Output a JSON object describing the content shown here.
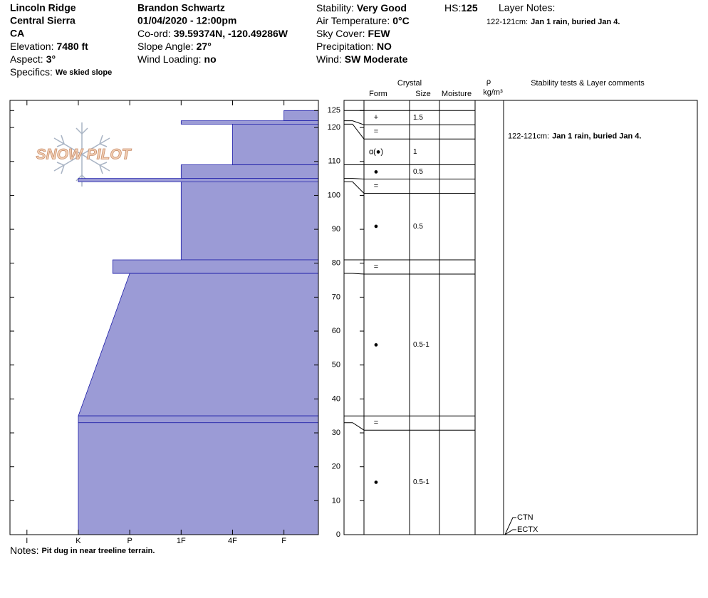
{
  "header": {
    "columns": [
      {
        "lines": [
          "Lincoln Ridge",
          "Central Sierra",
          "CA"
        ],
        "fields": [
          {
            "label": "Elevation:",
            "value": "7480 ft"
          },
          {
            "label": "Aspect:",
            "value": "3°"
          },
          {
            "label": "Specifics:",
            "value": "We skied slope"
          }
        ]
      },
      {
        "lines": [
          "Brandon Schwartz",
          "01/04/2020 - 12:00pm"
        ],
        "fields": [
          {
            "label": "Co-ord:",
            "value": "39.59374N, -120.49286W"
          },
          {
            "label": "Slope Angle:",
            "value": "27°"
          },
          {
            "label": "Wind Loading:",
            "value": "no"
          }
        ]
      },
      {
        "fields": [
          {
            "label": "Stability:",
            "value": "Very Good"
          },
          {
            "label": "Air Temperature:",
            "value": "0°C"
          },
          {
            "label": "Sky Cover:",
            "value": "FEW"
          },
          {
            "label": "Precipitation:",
            "value": "NO"
          },
          {
            "label": "Wind:",
            "value": "SW Moderate"
          }
        ]
      }
    ],
    "hs": {
      "label": "HS:",
      "value": 125
    },
    "layer_notes": {
      "title": "Layer Notes:",
      "notes": [
        {
          "depth": "122-121cm:",
          "text": "Jan 1 rain, buried Jan 4."
        }
      ]
    }
  },
  "logo": "SNOW PILOT",
  "chart_data": {
    "type": "snow_profile",
    "color": "#9b9bd6",
    "xlim": [
      5.33,
      -0.67
    ],
    "xticks": [
      {
        "value": 5,
        "label": "I"
      },
      {
        "value": 4,
        "label": "K"
      },
      {
        "value": 3,
        "label": "P"
      },
      {
        "value": 2,
        "label": "1F"
      },
      {
        "value": 1,
        "label": "4F"
      },
      {
        "value": 0,
        "label": "F"
      }
    ],
    "ylim": [
      0,
      128
    ],
    "yticks": [
      0,
      10,
      20,
      30,
      40,
      50,
      60,
      70,
      80,
      90,
      100,
      110,
      120,
      125
    ],
    "layers": [
      {
        "top": 125,
        "bottom": 122,
        "hardness_top": 0,
        "hardness_bottom": 0,
        "form": "+",
        "size": 1.5
      },
      {
        "top": 122,
        "bottom": 121,
        "hardness_top": 2,
        "hardness_bottom": 2,
        "form": "="
      },
      {
        "top": 121,
        "bottom": 109,
        "hardness_top": 1,
        "hardness_bottom": 1,
        "form": "ɑ(●)",
        "size": 1
      },
      {
        "top": 109,
        "bottom": 105,
        "hardness_top": 2,
        "hardness_bottom": 2,
        "form": "●",
        "size": 0.5
      },
      {
        "top": 105,
        "bottom": 104,
        "hardness_top": 4,
        "hardness_bottom": 4,
        "form": "="
      },
      {
        "top": 104,
        "bottom": 81,
        "hardness_top": 2,
        "hardness_bottom": 2,
        "form": "●",
        "size": 0.5
      },
      {
        "top": 81,
        "bottom": 77,
        "hardness_top": 3.33,
        "hardness_bottom": 3.33,
        "form": "="
      },
      {
        "top": 77,
        "bottom": 35,
        "hardness_top": 3,
        "hardness_bottom": 4,
        "form": "●",
        "size": "0.5-1"
      },
      {
        "top": 35,
        "bottom": 33,
        "hardness_top": 4,
        "hardness_bottom": 4,
        "form": "="
      },
      {
        "top": 33,
        "bottom": 0,
        "hardness_top": 4,
        "hardness_bottom": 4,
        "form": "●",
        "size": "0.5-1"
      }
    ]
  },
  "table": {
    "header": {
      "crystal": "Crystal",
      "form": "Form",
      "size": "Size",
      "moisture": "Moisture",
      "rho": "ρ",
      "density_unit": "kg/m³",
      "comments": "Stability tests & Layer comments"
    },
    "comments": [
      {
        "depth": "122-121cm:",
        "text": "Jan 1 rain, buried Jan 4."
      }
    ],
    "tests": [
      {
        "label": "CTN",
        "depth": 0
      },
      {
        "label": "ECTX",
        "depth": 0
      }
    ]
  },
  "notes": {
    "label": "Notes:",
    "text": "Pit dug in near treeline terrain."
  }
}
